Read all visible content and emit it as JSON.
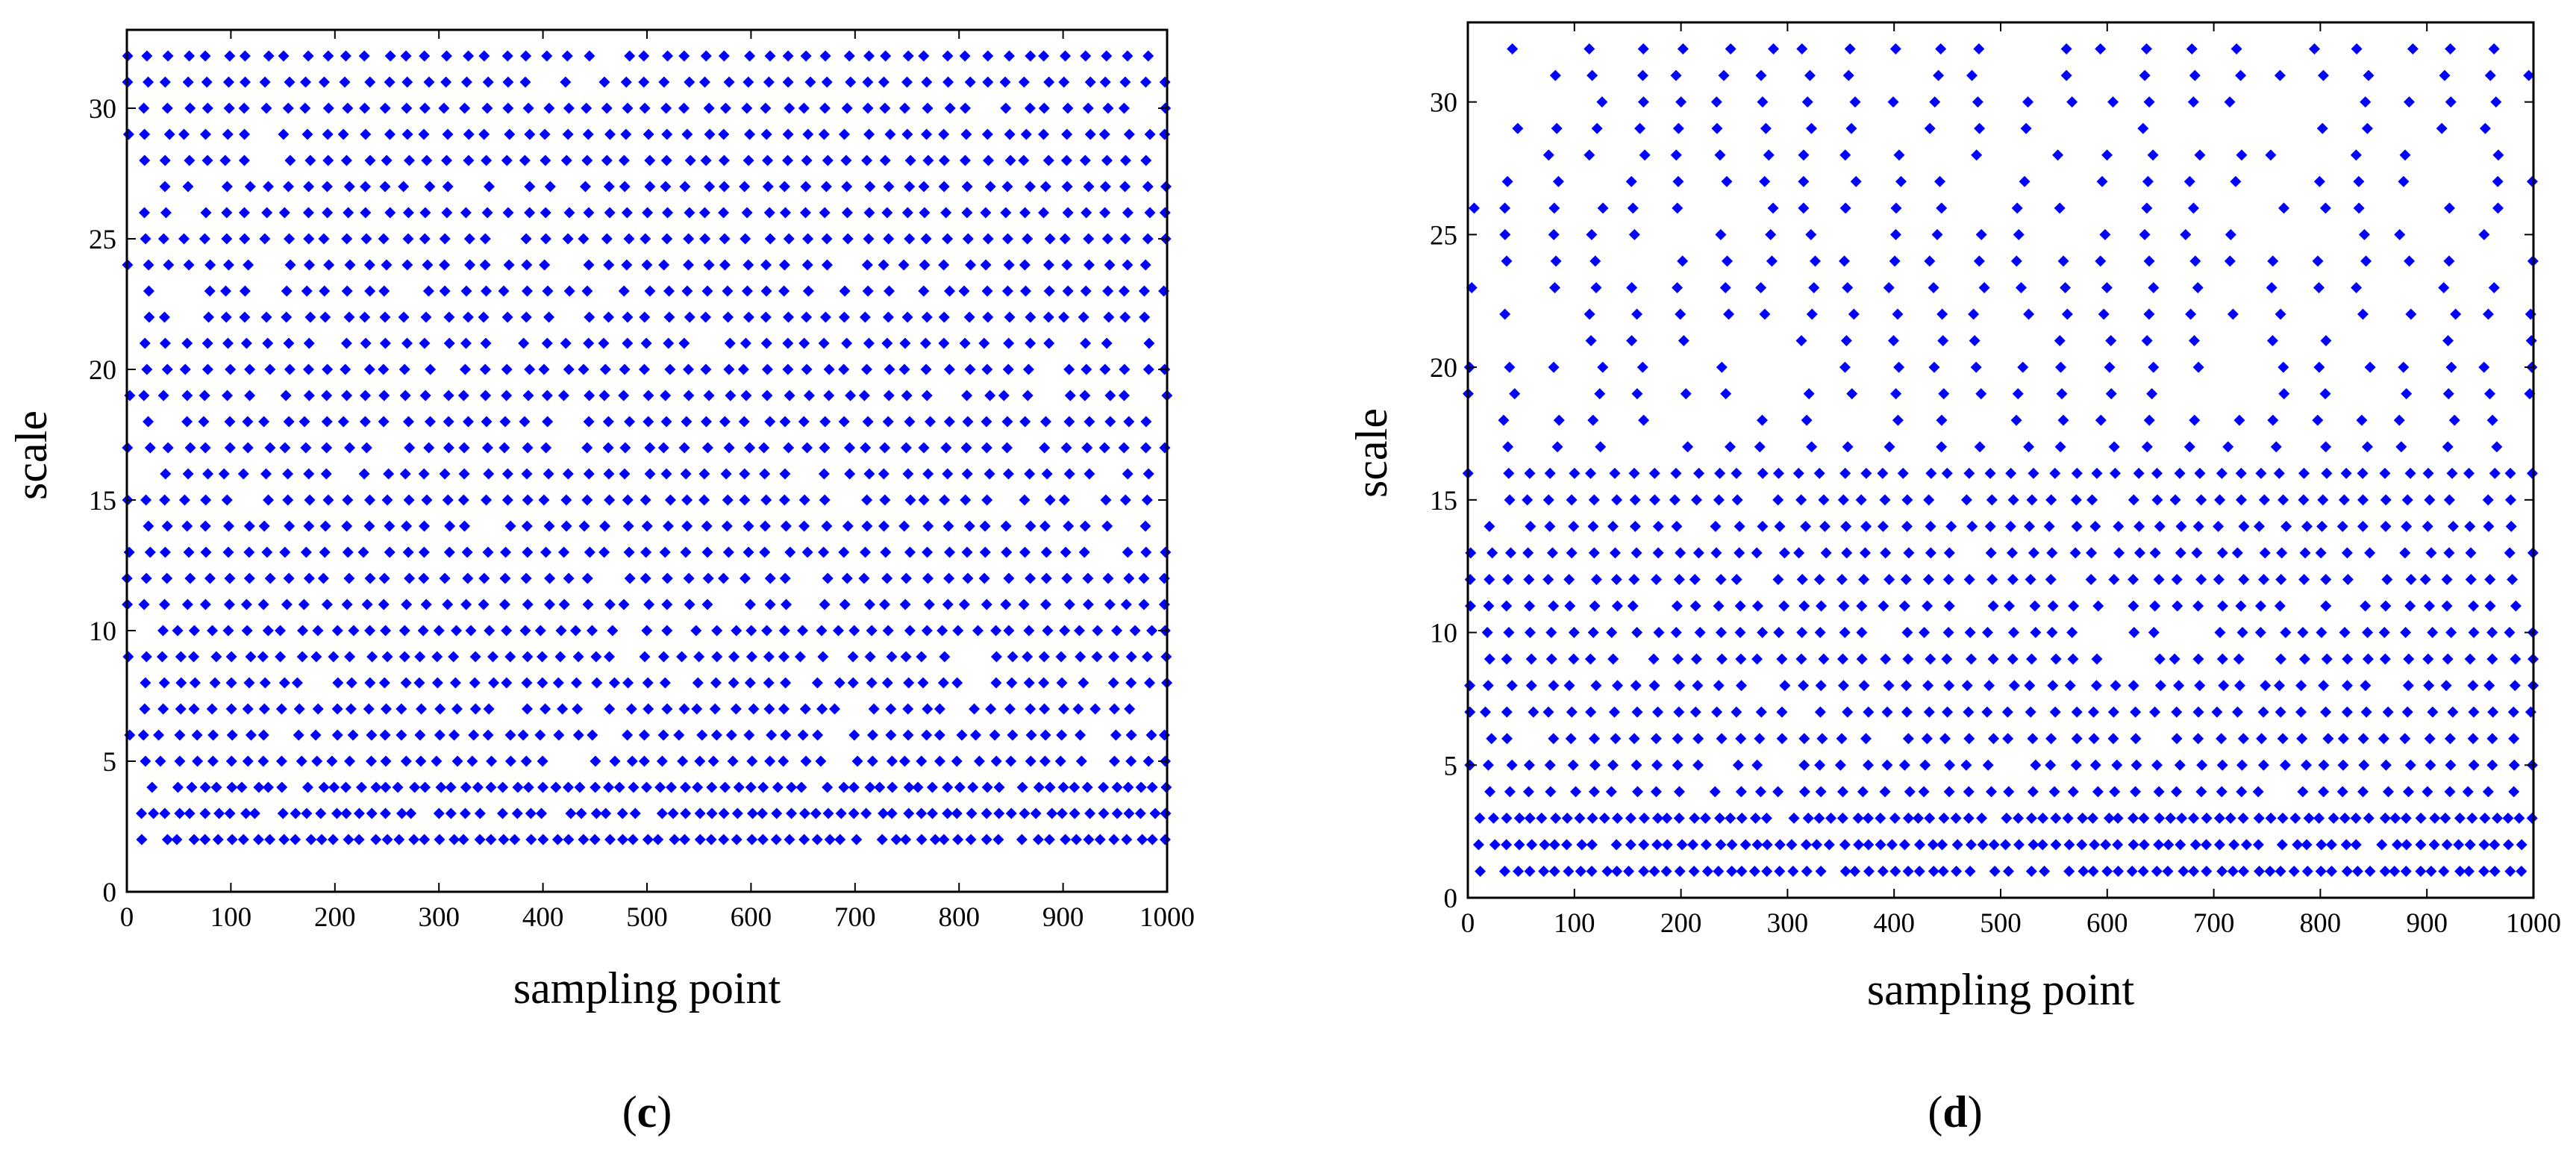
{
  "chart_data": [
    {
      "type": "scatter",
      "panel_label": "c",
      "xlabel": "sampling point",
      "ylabel": "scale",
      "xlim": [
        0,
        1000
      ],
      "ylim": [
        0,
        33
      ],
      "xticks": [
        0,
        100,
        200,
        300,
        400,
        500,
        600,
        700,
        800,
        900,
        1000
      ],
      "yticks": [
        0,
        5,
        10,
        15,
        20,
        25,
        30
      ],
      "grid": false,
      "marker_color": "#0000ff",
      "marker": "diamond",
      "scale_levels": [
        2,
        32
      ],
      "approx_points_per_level": 52,
      "description_of_data": "dense diamonds at every integer scale 2-32 across sampling points 0-1000, densest at low scales"
    },
    {
      "type": "scatter",
      "panel_label": "d",
      "xlabel": "sampling point",
      "ylabel": "scale",
      "xlim": [
        0,
        1000
      ],
      "ylim": [
        0,
        33
      ],
      "xticks": [
        0,
        100,
        200,
        300,
        400,
        500,
        600,
        700,
        800,
        900,
        1000
      ],
      "yticks": [
        0,
        5,
        10,
        15,
        20,
        25,
        30
      ],
      "grid": false,
      "marker_color": "#0000ff",
      "marker": "diamond",
      "scale_levels": [
        1,
        32
      ],
      "approx_points_per_level": 45,
      "description_of_data": "diamonds at every integer scale 1-32; very dense at scales 1-16, sparser at scales 17-32"
    }
  ]
}
